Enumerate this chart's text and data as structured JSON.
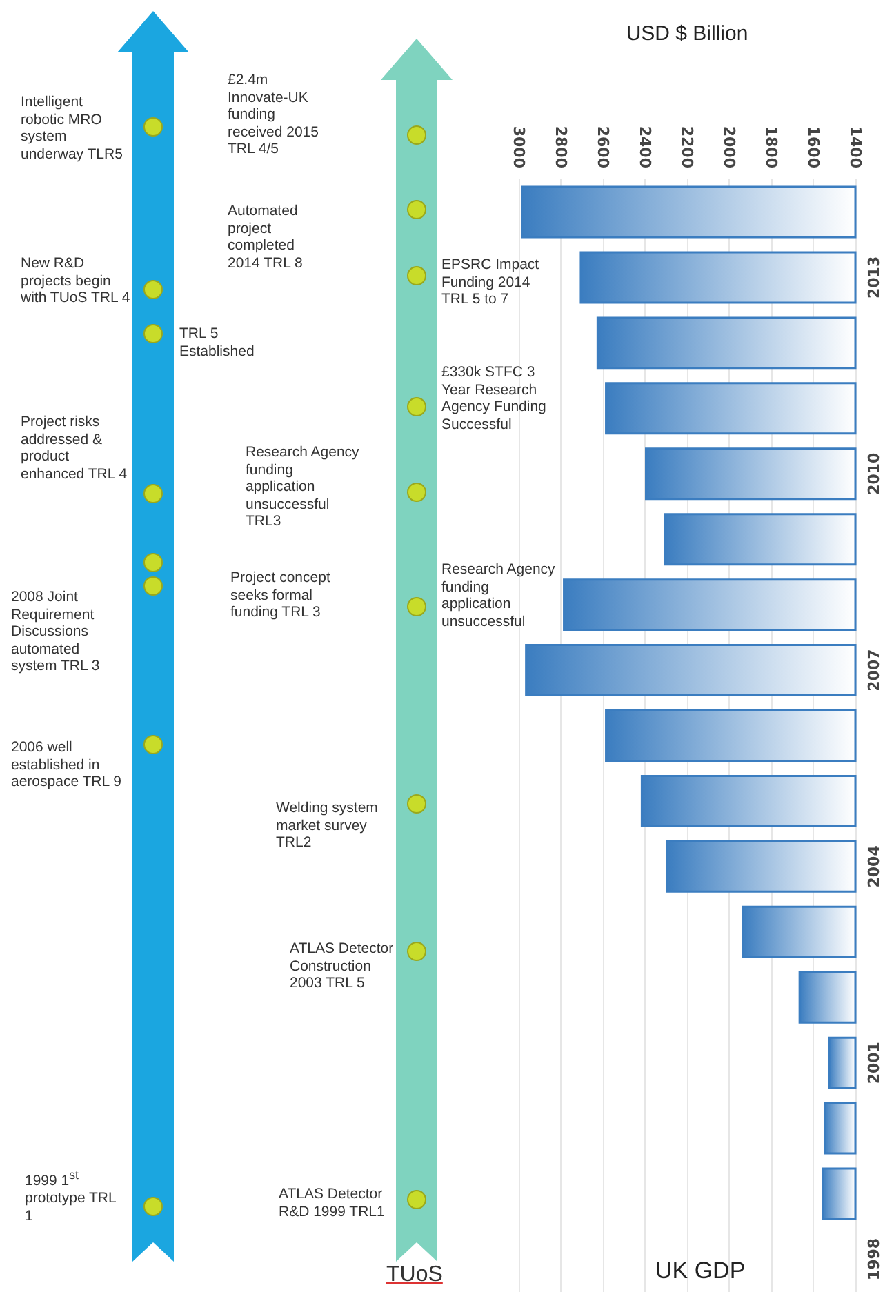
{
  "chart_data": {
    "type": "bar",
    "orientation": "horizontal",
    "title": "UK GDP",
    "xlabel": "USD $ Billion",
    "categories": [
      null,
      "2013",
      null,
      null,
      "2010",
      null,
      null,
      "2007",
      null,
      null,
      "2004",
      null,
      null,
      "2001",
      null,
      null,
      "1998"
    ],
    "values": [
      2990,
      2710,
      2630,
      2590,
      2400,
      2310,
      2790,
      2970,
      2590,
      2420,
      2300,
      1940,
      1670,
      1530,
      1550,
      1560,
      null
    ],
    "color": "#3b7dc0",
    "xlim": [
      3000,
      1400
    ],
    "xticks": [
      3000,
      2800,
      2600,
      2400,
      2200,
      2000,
      1800,
      1600,
      1400
    ],
    "grid": "x",
    "annotations": [
      "Intelligent robotic MRO system underway TLR5",
      "New R&D projects begin with TUoS TRL 4",
      "TRL 5 Established",
      "Project risks addressed & product enhanced TRL 4",
      "2008 Joint Requirement Discussions automated system TRL 3",
      "2006 well established in aerospace TRL 9",
      "1999 1$^{st}$ prototype TRL 1",
      "£2.4m Innovate-UK funding received 2015 TRL 4/5",
      "Automated project completed 2014 TRL 8",
      "Research Agency funding application unsuccessful TRL3",
      "Project concept seeks formal funding TRL 3",
      "Welding system market survey TRL2",
      "ATLAS Detector Construction 2003 TRL 5",
      "ATLAS Detector R&D 1999 TRL1",
      "EPSRC Impact Funding 2014 TRL 5 to 7",
      "£330k STFC 3 Year Research Agency Funding Successful",
      "Research Agency funding application unsuccessful",
      "TUoS"
    ]
  }
}
